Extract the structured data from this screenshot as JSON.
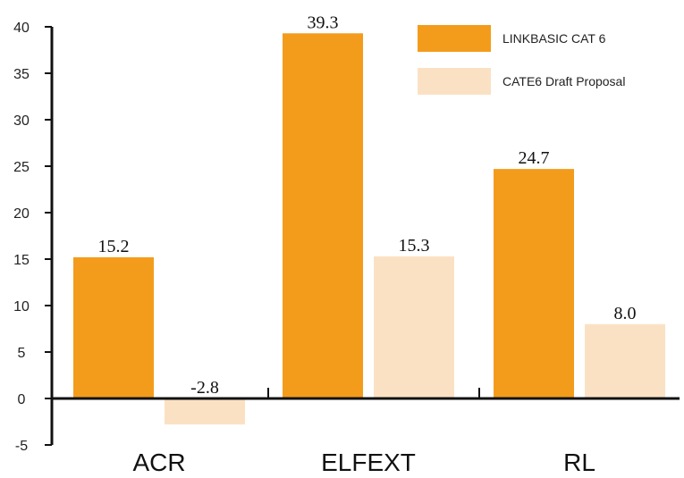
{
  "chart_data": {
    "type": "bar",
    "categories": [
      "ACR",
      "ELFEXT",
      "RL"
    ],
    "series": [
      {
        "name": "LINKBASIC CAT 6",
        "values": [
          15.2,
          39.3,
          24.7
        ],
        "color": "#f39c1c",
        "labels": [
          "15.2",
          "39.3",
          "24.7"
        ]
      },
      {
        "name": "CATE6 Draft Proposal",
        "values": [
          -2.8,
          15.3,
          8.0
        ],
        "color": "#fbe1c4",
        "labels": [
          "-2.8",
          "15.3",
          "8.0"
        ]
      }
    ],
    "ylim": [
      -5,
      40
    ],
    "yticks": [
      "40",
      "35",
      "30",
      "25",
      "20",
      "15",
      "10",
      "5",
      "0",
      "-5"
    ],
    "legend_position": "top-right",
    "grid": false
  }
}
